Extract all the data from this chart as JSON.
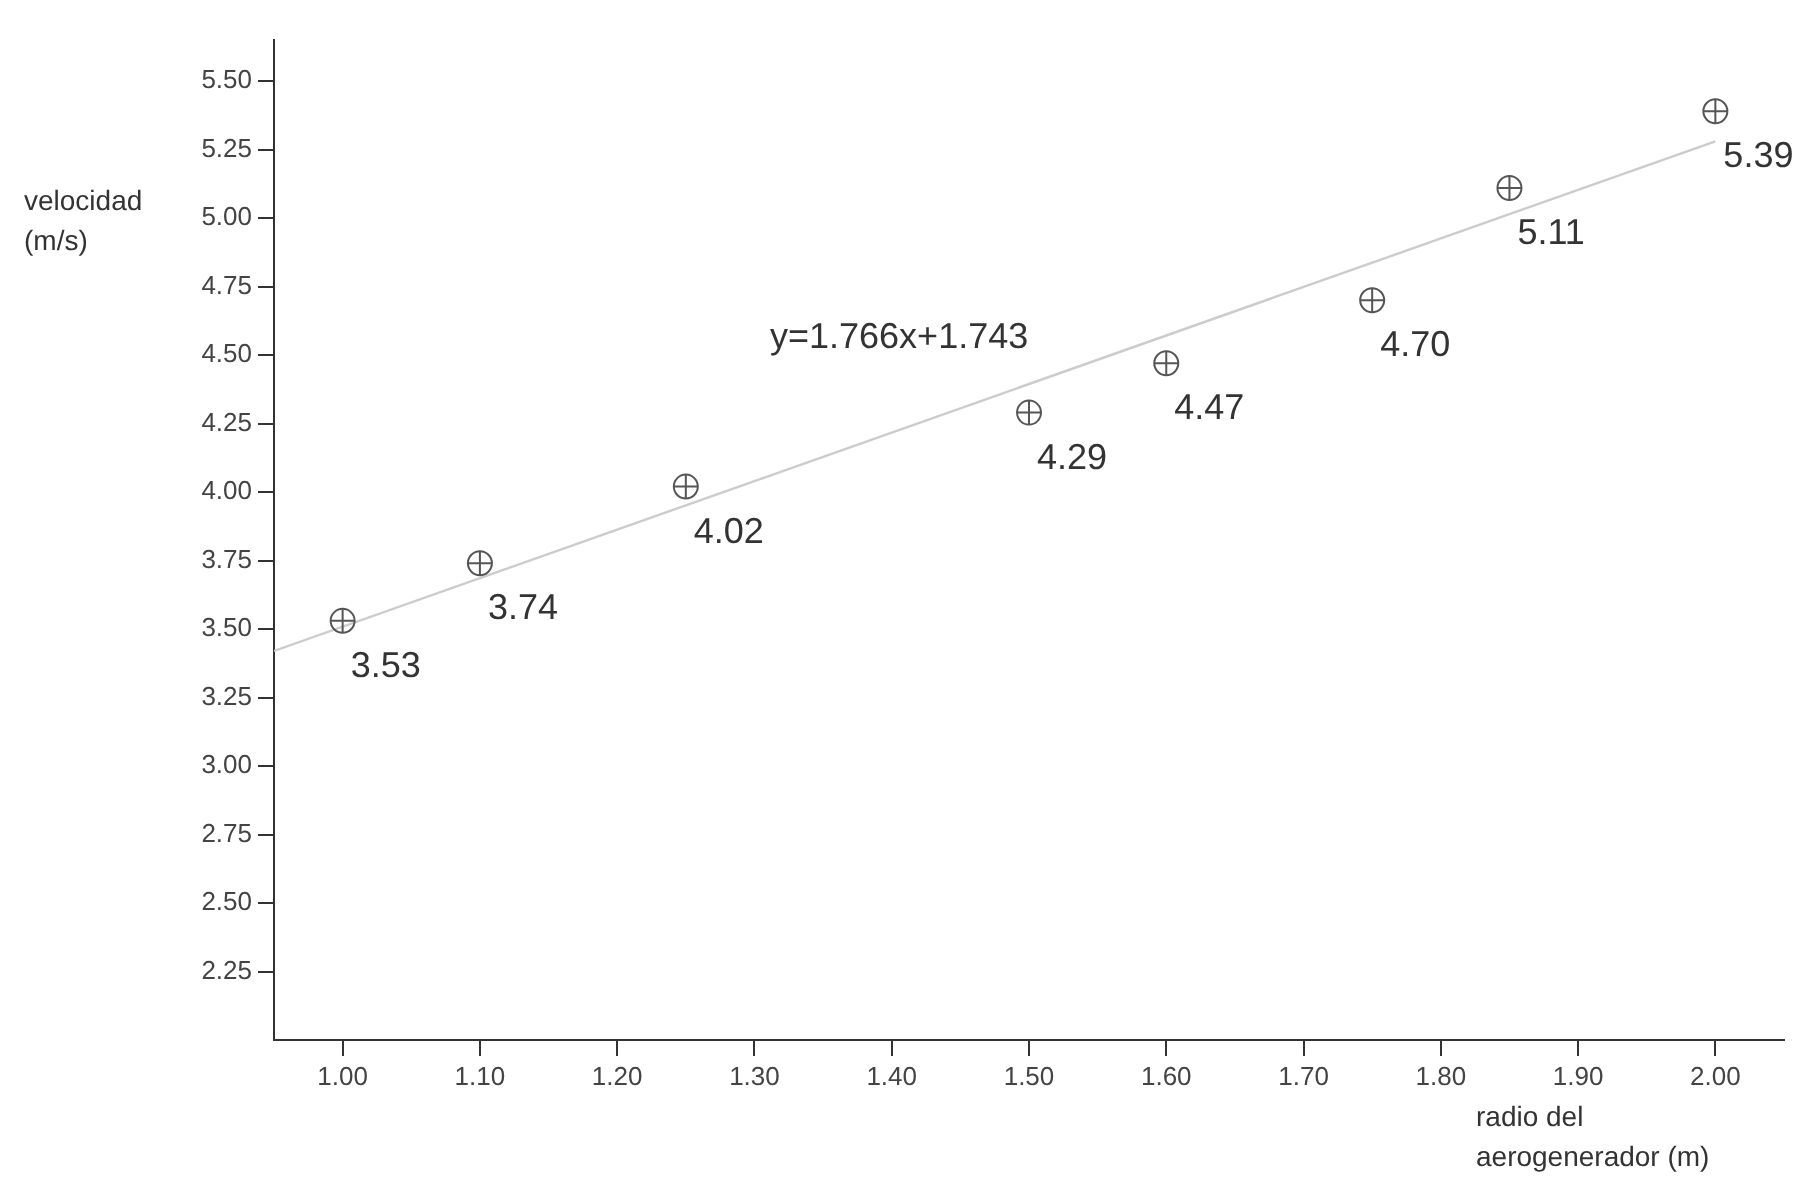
{
  "chart_data": {
    "type": "scatter",
    "xlabel": "radio del aerogenerador (m)",
    "ylabel": "velocidad (m/s)",
    "xlim": [
      0.95,
      2.05
    ],
    "ylim": [
      2.0,
      5.65
    ],
    "xticks": [
      {
        "value": 1,
        "label": "1.00"
      },
      {
        "value": 1.1,
        "label": "1.10"
      },
      {
        "value": 1.2,
        "label": "1.20"
      },
      {
        "value": 1.3,
        "label": "1.30"
      },
      {
        "value": 1.4,
        "label": "1.40"
      },
      {
        "value": 1.5,
        "label": "1.50"
      },
      {
        "value": 1.6,
        "label": "1.60"
      },
      {
        "value": 1.7,
        "label": "1.70"
      },
      {
        "value": 1.8,
        "label": "1.80"
      },
      {
        "value": 1.9,
        "label": "1.90"
      },
      {
        "value": 2,
        "label": "2.00"
      }
    ],
    "yticks": [
      {
        "value": 2.25,
        "label": "2.25"
      },
      {
        "value": 2.5,
        "label": "2.50"
      },
      {
        "value": 2.75,
        "label": "2.75"
      },
      {
        "value": 3,
        "label": "3.00"
      },
      {
        "value": 3.25,
        "label": "3.25"
      },
      {
        "value": 3.5,
        "label": "3.50"
      },
      {
        "value": 3.75,
        "label": "3.75"
      },
      {
        "value": 4,
        "label": "4.00"
      },
      {
        "value": 4.25,
        "label": "4.25"
      },
      {
        "value": 4.5,
        "label": "4.50"
      },
      {
        "value": 4.75,
        "label": "4.75"
      },
      {
        "value": 5,
        "label": "5.00"
      },
      {
        "value": 5.25,
        "label": "5.25"
      },
      {
        "value": 5.5,
        "label": "5.50"
      }
    ],
    "grid": false,
    "legend": false,
    "series": [
      {
        "marker": "circle",
        "color": "#555555",
        "x": [
          1.0,
          1.1,
          1.25,
          1.5,
          1.6,
          1.75,
          1.85,
          2.0
        ],
        "values": [
          3.53,
          3.74,
          4.02,
          4.29,
          4.47,
          4.7,
          5.11,
          5.39
        ],
        "value_labels": [
          "3.53",
          "3.74",
          "4.02",
          "4.29",
          "4.47",
          "4.70",
          "5.11",
          "5.39"
        ]
      },
      {
        "type": "line",
        "marker": "none",
        "color": "#cccccc",
        "x": [
          0.95,
          2.0
        ],
        "values": [
          3.42,
          5.28
        ]
      }
    ],
    "annotations": [
      "y=1.766x+1.743"
    ]
  }
}
